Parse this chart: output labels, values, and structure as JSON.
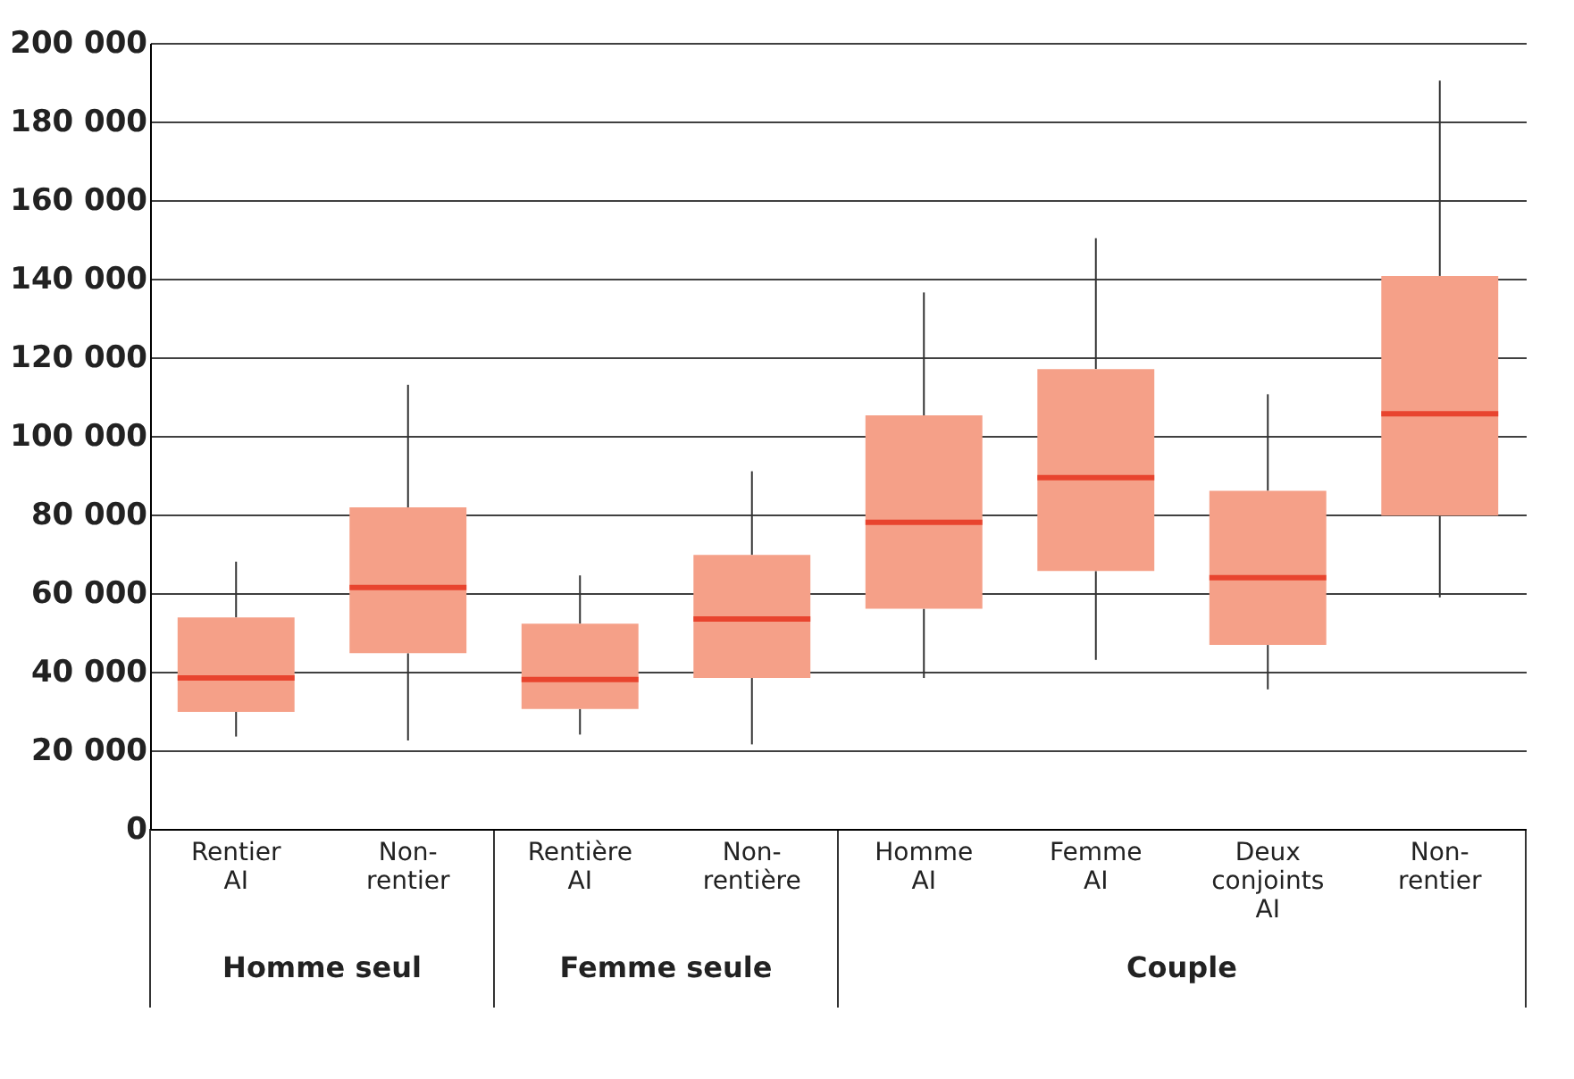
{
  "chart_data": {
    "type": "box",
    "categories": [
      "Rentier AI",
      "Non-rentier",
      "Rentière AI",
      "Non-rentière",
      "Homme AI",
      "Femme AI",
      "Deux conjoints AI",
      "Non-rentier"
    ],
    "color": "#f5a088",
    "boxes": [
      {
        "low": 23500,
        "q1": 29800,
        "median": 38400,
        "q3": 53800,
        "high": 68000
      },
      {
        "low": 22500,
        "q1": 44700,
        "median": 61400,
        "q3": 81800,
        "high": 113000
      },
      {
        "low": 24000,
        "q1": 30500,
        "median": 38000,
        "q3": 52200,
        "high": 64500
      },
      {
        "low": 21500,
        "q1": 38400,
        "median": 53400,
        "q3": 69700,
        "high": 91000
      },
      {
        "low": 38400,
        "q1": 56000,
        "median": 78000,
        "q3": 105200,
        "high": 136500
      },
      {
        "low": 43000,
        "q1": 65600,
        "median": 89400,
        "q3": 117000,
        "high": 150300
      },
      {
        "low": 35500,
        "q1": 46800,
        "median": 63900,
        "q3": 86000,
        "high": 110600
      },
      {
        "low": 58900,
        "q1": 79700,
        "median": 105600,
        "q3": 140700,
        "high": 190400
      }
    ],
    "ylim": [
      0,
      200000
    ],
    "yticks": [
      0,
      {
        "value": 20000,
        "label": "20 000"
      },
      {
        "value": 40000,
        "label": "40 000"
      },
      {
        "value": 60000,
        "label": "60 000"
      },
      {
        "value": 80000,
        "label": "80 000"
      },
      {
        "value": 100000,
        "label": "100 000"
      },
      {
        "value": 120000,
        "label": "120 000"
      },
      {
        "value": 140000,
        "label": "140 000"
      },
      {
        "value": 160000,
        "label": "160 000"
      },
      {
        "value": 180000,
        "label": "180 000"
      },
      {
        "value": 200000,
        "label": "200 000"
      }
    ],
    "grid": "y",
    "annotations": [
      "Homme seul",
      "Femme seule",
      "Couple"
    ]
  }
}
